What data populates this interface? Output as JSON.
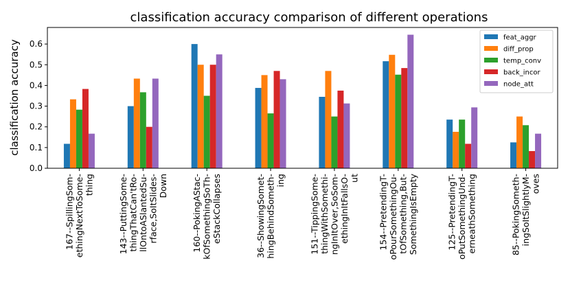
{
  "chart_data": {
    "type": "bar",
    "title": "classification accuracy comparison of different operations",
    "xlabel": "",
    "ylabel": "classification accuracy",
    "ylim": [
      0,
      0.68
    ],
    "yticks": [
      "0.0",
      "0.1",
      "0.2",
      "0.3",
      "0.4",
      "0.5",
      "0.6"
    ],
    "legend_position": "top-right",
    "categories": [
      [
        "167--SpillingSom-",
        "ethingNextToSome-",
        "thing"
      ],
      [
        "143--PuttingSome-",
        "thingThatCan'tRo-",
        "llOntoASlantedSu-",
        "rface,SoItSlides-",
        "Down"
      ],
      [
        "160--PokingAStac-",
        "kOfSomethingSoTh-",
        "eStackCollapses"
      ],
      [
        "36--ShowingSomet-",
        "hingBehindSometh-",
        "ing"
      ],
      [
        "151--TippingSome-",
        "thingWithSomethi-",
        "ngInItOver,SoSom-",
        "ethingInItFallsO-",
        "ut"
      ],
      [
        "154--PretendingT-",
        "oPourSomethingOu-",
        "tOfSomething,But-",
        "SomethingIsEmpty"
      ],
      [
        "125--PretendingT-",
        "oPutSomethingUnd-",
        "ernеathSomething"
      ],
      [
        "85--PokingSometh-",
        "ingSoItSlightlyM-",
        "oves"
      ]
    ],
    "series": [
      {
        "name": "feat_aggr",
        "color": "#1f77b4",
        "values": [
          0.118,
          0.3,
          0.6,
          0.388,
          0.345,
          0.517,
          0.235,
          0.125
        ]
      },
      {
        "name": "diff_prop",
        "color": "#ff7f0e",
        "values": [
          0.333,
          0.433,
          0.5,
          0.45,
          0.47,
          0.548,
          0.176,
          0.25
        ]
      },
      {
        "name": "temp_conv",
        "color": "#2ca02c",
        "values": [
          0.283,
          0.367,
          0.35,
          0.265,
          0.25,
          0.452,
          0.235,
          0.208
        ]
      },
      {
        "name": "back_incor",
        "color": "#d62728",
        "values": [
          0.383,
          0.2,
          0.5,
          0.47,
          0.375,
          0.484,
          0.118,
          0.083
        ]
      },
      {
        "name": "node_att",
        "color": "#9467bd",
        "values": [
          0.167,
          0.433,
          0.55,
          0.43,
          0.313,
          0.645,
          0.294,
          0.167
        ]
      }
    ]
  }
}
